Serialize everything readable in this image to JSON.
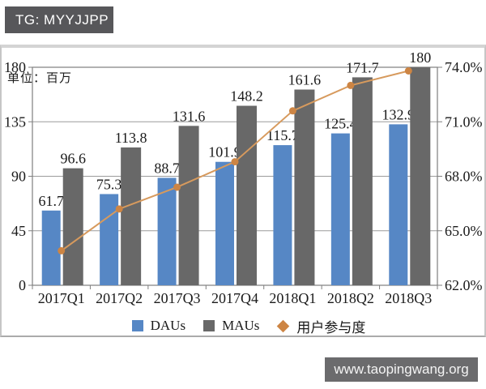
{
  "banners": {
    "top": "TG: MYYJJPP",
    "bottom": "www.taopingwang.org"
  },
  "chart_data": {
    "type": "combo-bar-line",
    "title": "",
    "unit_label": "单位：百万",
    "categories": [
      "2017Q1",
      "2017Q2",
      "2017Q3",
      "2017Q4",
      "2018Q1",
      "2018Q2",
      "2018Q3"
    ],
    "series": [
      {
        "name": "DAUs",
        "type": "bar",
        "axis": "left",
        "color": "#5687c5",
        "values": [
          61.7,
          75.3,
          88.7,
          101.9,
          115.7,
          125.4,
          132.9
        ],
        "labels": [
          "61.7",
          "75.3",
          "88.7",
          "101.9",
          "115.7",
          "125.4",
          "132.9"
        ]
      },
      {
        "name": "MAUs",
        "type": "bar",
        "axis": "left",
        "color": "#686868",
        "values": [
          96.6,
          113.8,
          131.6,
          148.2,
          161.6,
          171.7,
          180
        ],
        "labels": [
          "96.6",
          "113.8",
          "131.6",
          "148.2",
          "161.6",
          "171.7",
          "180"
        ]
      },
      {
        "name": "用户参与度",
        "type": "line",
        "axis": "right",
        "color": "#d79a5d",
        "marker_color": "#cd8544",
        "values": [
          63.9,
          66.2,
          67.4,
          68.8,
          71.6,
          73.0,
          73.8
        ]
      }
    ],
    "left_axis": {
      "min": 0,
      "max": 180,
      "ticks": [
        0,
        45,
        90,
        135,
        180
      ],
      "tick_labels": [
        "0",
        "45",
        "90",
        "135",
        "180"
      ]
    },
    "right_axis": {
      "min": 62,
      "max": 74,
      "ticks": [
        62,
        65,
        68,
        71,
        74
      ],
      "tick_labels": [
        "62.0%",
        "65.0%",
        "68.0%",
        "71.0%",
        "74.0%"
      ]
    },
    "legend": [
      {
        "label": "DAUs",
        "marker": "square",
        "color": "#5687c5"
      },
      {
        "label": "MAUs",
        "marker": "square",
        "color": "#686868"
      },
      {
        "label": "用户参与度",
        "marker": "diamond",
        "color": "#cd8544"
      }
    ],
    "grid": true,
    "legend_position": "bottom"
  }
}
